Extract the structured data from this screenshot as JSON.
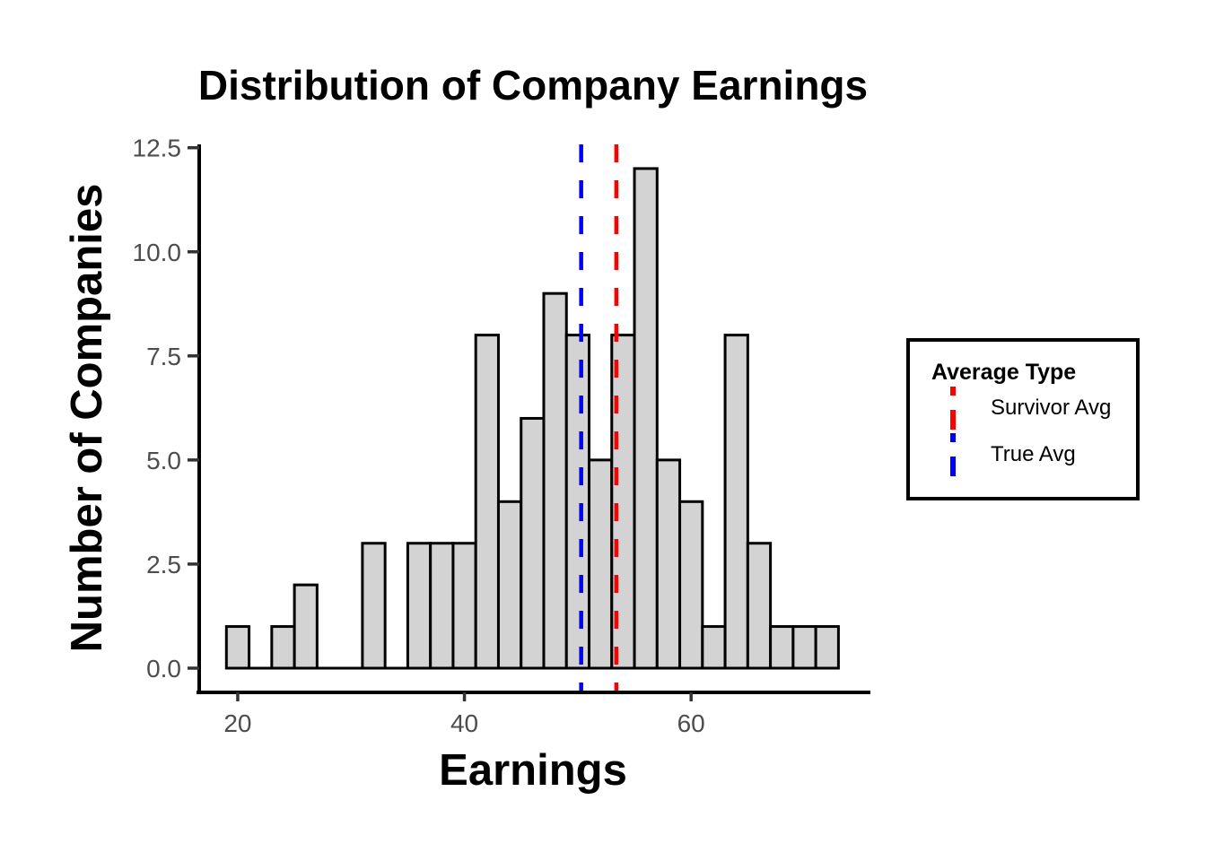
{
  "chart_data": {
    "type": "bar",
    "subtype": "histogram",
    "title": "Distribution of Company Earnings",
    "xlabel": "Earnings",
    "ylabel": "Number of Companies",
    "bin_width": 2,
    "bin_start": 19,
    "bin_centers": [
      20,
      22,
      24,
      26,
      28,
      30,
      32,
      34,
      36,
      38,
      40,
      42,
      44,
      46,
      48,
      50,
      52,
      54,
      56,
      58,
      60,
      62,
      64,
      66,
      68,
      70,
      72
    ],
    "counts": [
      1,
      0,
      1,
      2,
      0,
      0,
      3,
      0,
      3,
      3,
      3,
      8,
      4,
      6,
      9,
      8,
      5,
      8,
      12,
      5,
      4,
      1,
      8,
      3,
      1,
      1,
      1
    ],
    "x_tick_labels": [
      "20",
      "40",
      "60"
    ],
    "x_tick_values": [
      20,
      40,
      60
    ],
    "y_tick_labels": [
      "0.0",
      "2.5",
      "5.0",
      "7.5",
      "10.0",
      "12.5"
    ],
    "y_tick_values": [
      0,
      2.5,
      5,
      7.5,
      10,
      12.5
    ],
    "xlim": [
      16.6,
      75.66
    ],
    "ylim": [
      -0.582,
      12.58
    ],
    "grid": false,
    "bar_fill": "#d3d3d3",
    "bar_stroke": "#000000",
    "axis_color": "#000000",
    "tick_color": "#333333",
    "tick_label_color": "#4d4d4d",
    "vlines": [
      {
        "label": "Survivor Avg",
        "x": 53.4,
        "color": "#ff0000",
        "linetype": "dashed"
      },
      {
        "label": "True Avg",
        "x": 50.3,
        "color": "#0000ff",
        "linetype": "dashed"
      }
    ],
    "legend": {
      "title": "Average Type",
      "position": "right",
      "entries": [
        {
          "label": "Survivor Avg",
          "color": "#ff0000",
          "style": "dashed-vertical-line"
        },
        {
          "label": "True Avg",
          "color": "#0000ff",
          "style": "dashed-vertical-line"
        }
      ]
    }
  }
}
